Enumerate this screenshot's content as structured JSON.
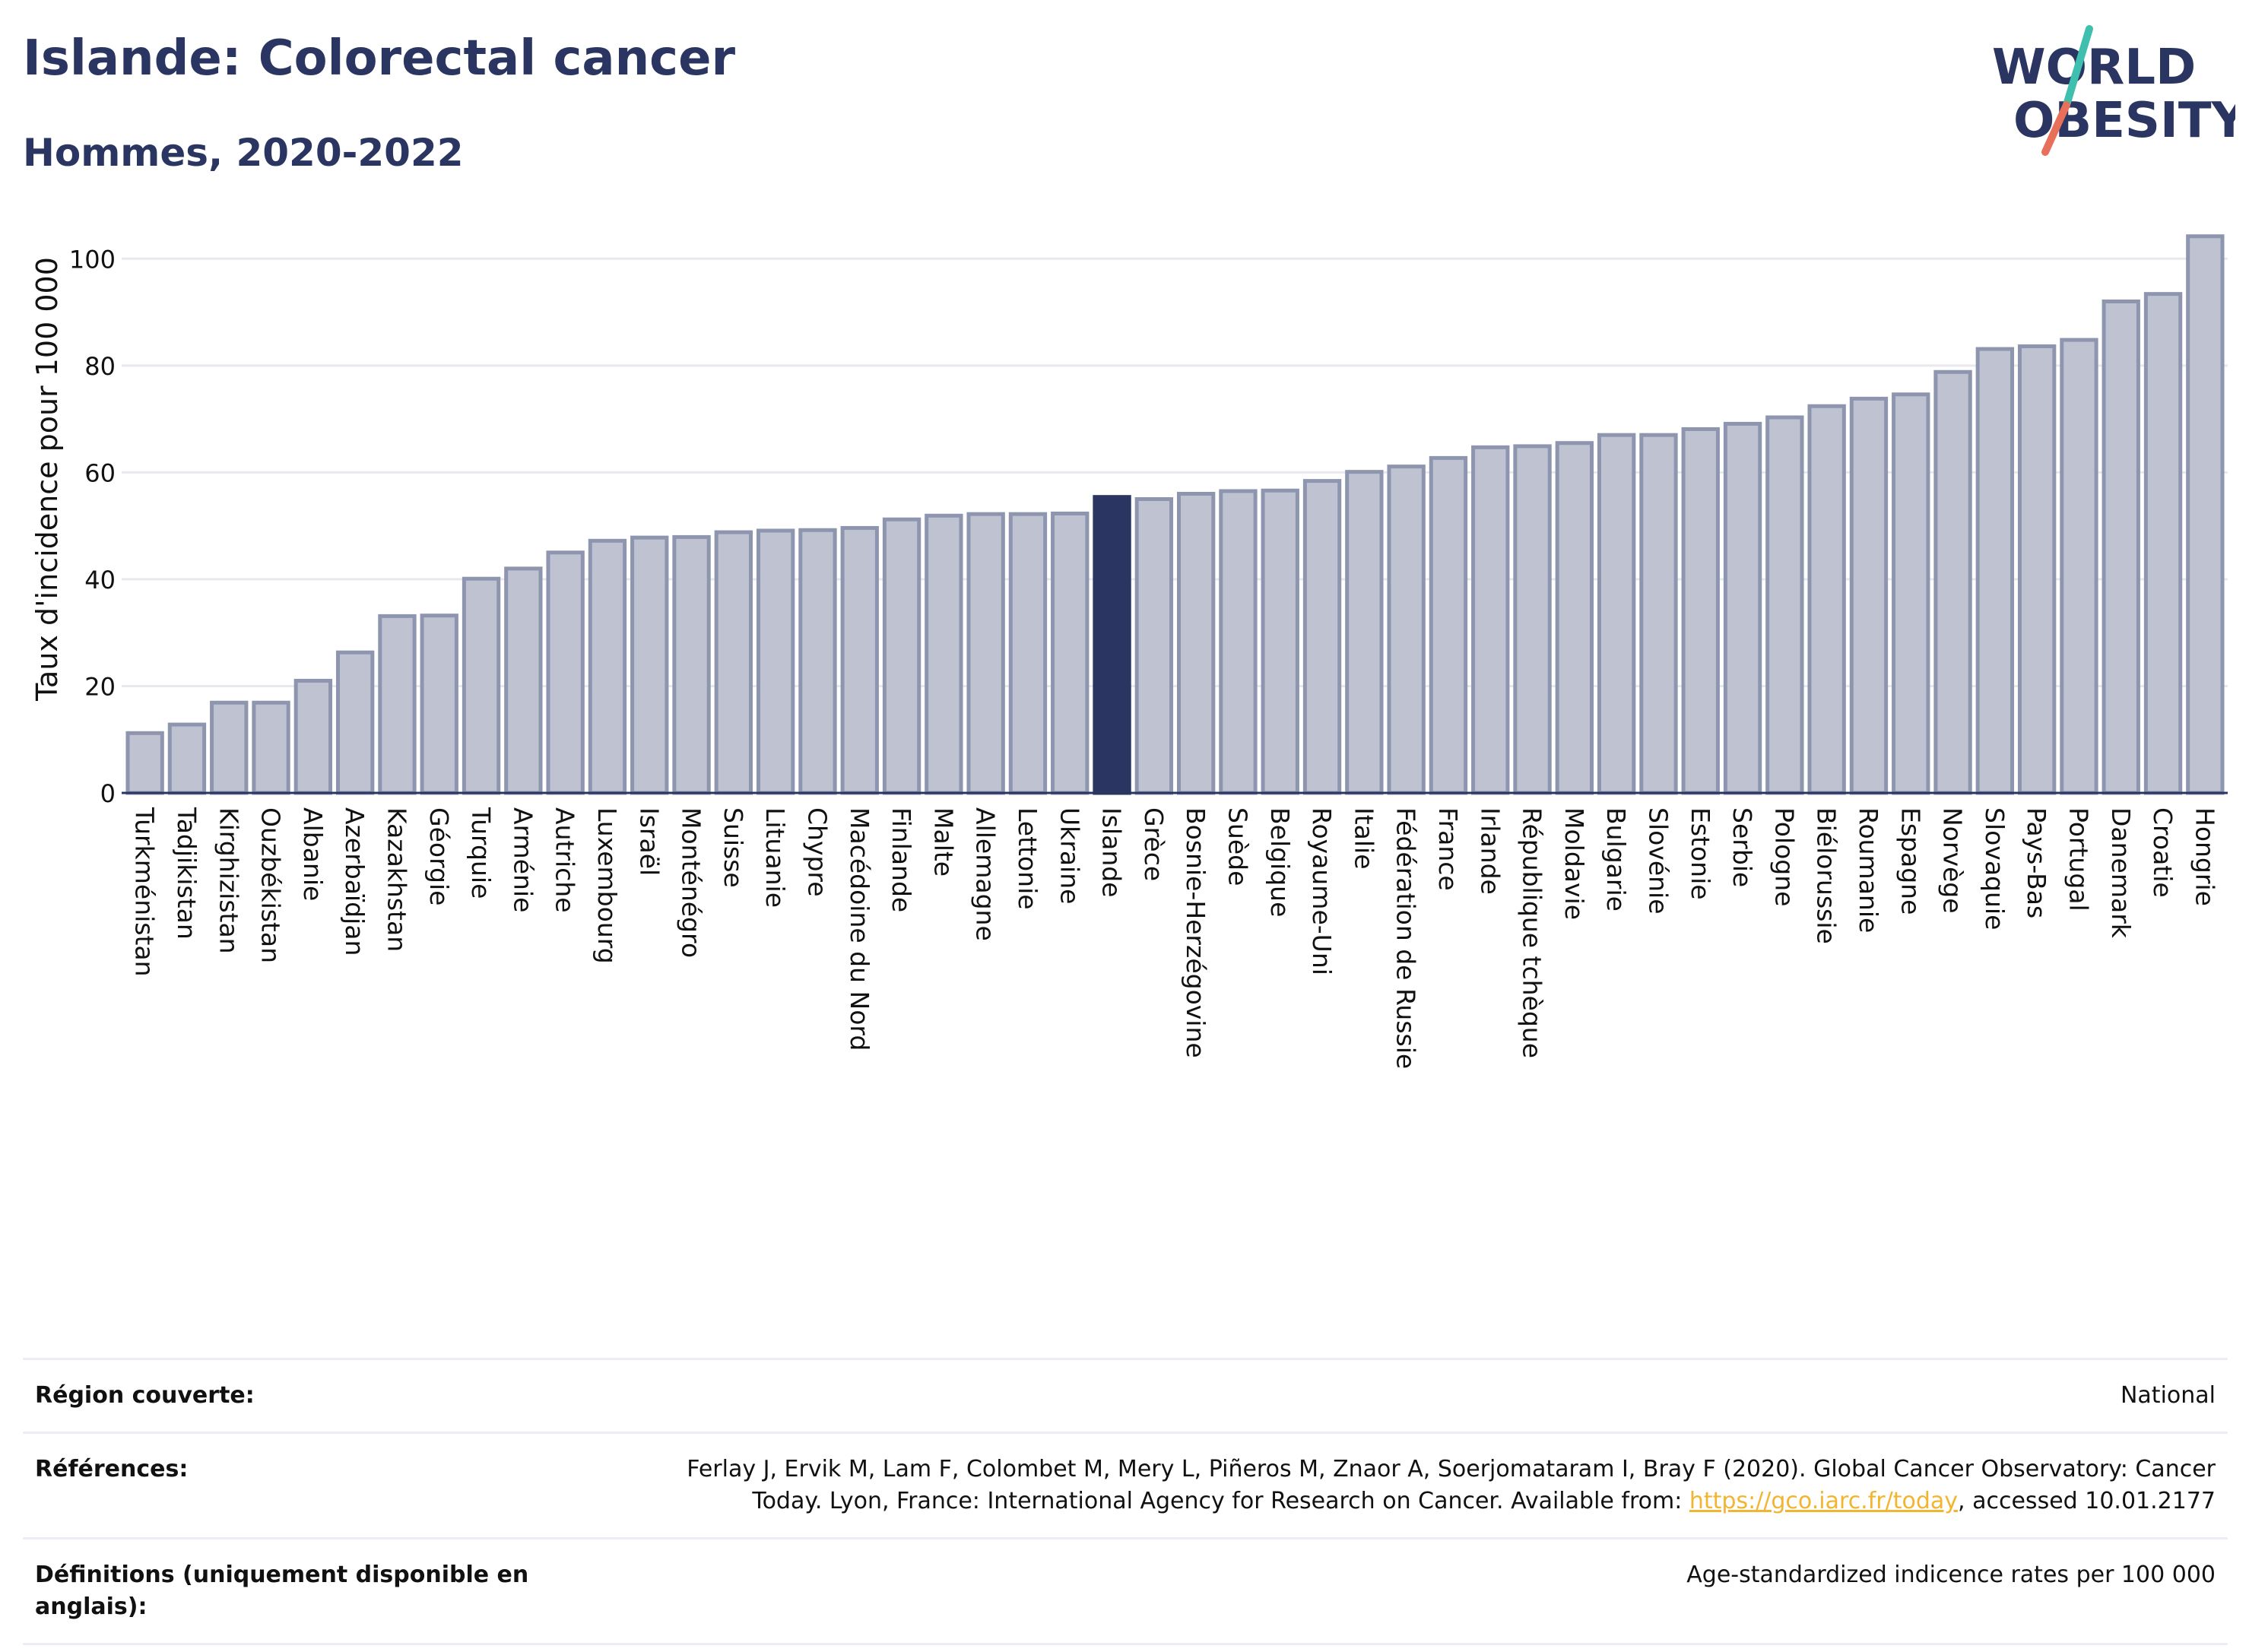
{
  "header": {
    "title": "Islande: Colorectal cancer",
    "subtitle": "Hommes, 2020-2022"
  },
  "logo": {
    "line1": "WORLD",
    "line2": "OBESITY",
    "icon": "world-obesity-slash-logo"
  },
  "colors": {
    "bar": "#bfc3d1",
    "bar_edge": "#8e95ae",
    "highlight": "#2a3561",
    "grid": "#e8e9ee",
    "axis": "#2a3561"
  },
  "chart_data": {
    "type": "bar",
    "ylabel": "Taux d'incidence pour 100 000",
    "ylim": [
      0,
      110
    ],
    "yticks": [
      0,
      20,
      40,
      60,
      80,
      100
    ],
    "grid": true,
    "highlight": "Islande",
    "categories": [
      "Turkménistan",
      "Tadjikistan",
      "Kirghizistan",
      "Ouzbékistan",
      "Albanie",
      "Azerbaïdjan",
      "Kazakhstan",
      "Géorgie",
      "Turquie",
      "Arménie",
      "Autriche",
      "Luxembourg",
      "Israël",
      "Monténégro",
      "Suisse",
      "Lituanie",
      "Chypre",
      "Macédoine du Nord",
      "Finlande",
      "Malte",
      "Allemagne",
      "Lettonie",
      "Ukraine",
      "Islande",
      "Grèce",
      "Bosnie-Herzégovine",
      "Suède",
      "Belgique",
      "Royaume-Uni",
      "Italie",
      "Fédération de Russie",
      "France",
      "Irlande",
      "République tchèque",
      "Moldavie",
      "Bulgarie",
      "Slovénie",
      "Estonie",
      "Serbie",
      "Pologne",
      "Biélorussie",
      "Roumanie",
      "Espagne",
      "Norvège",
      "Slovaquie",
      "Pays-Bas",
      "Portugal",
      "Danemark",
      "Croatie",
      "Hongrie"
    ],
    "values": [
      11.2,
      12.8,
      16.9,
      16.9,
      21.0,
      26.3,
      33.1,
      33.2,
      40.1,
      42.0,
      45.0,
      47.2,
      47.8,
      47.9,
      48.8,
      49.1,
      49.2,
      49.6,
      51.2,
      51.9,
      52.2,
      52.2,
      52.3,
      55.4,
      55.0,
      56.0,
      56.5,
      56.6,
      58.4,
      60.1,
      61.1,
      62.7,
      64.7,
      64.9,
      65.5,
      67.0,
      67.0,
      68.1,
      69.1,
      70.3,
      72.4,
      73.8,
      74.6,
      78.8,
      83.1,
      83.6,
      84.8,
      92.0,
      93.4,
      104.2
    ]
  },
  "meta": {
    "region_label": "Région couverte:",
    "region_value": "National",
    "refs_label": "Références:",
    "refs_line1": "Ferlay J, Ervik M, Lam F, Colombet M, Mery L, Piñeros M, Znaor A, Soerjomataram I, Bray F (2020). Global Cancer Observatory: Cancer",
    "refs_line2_pre": "Today. Lyon, France: International Agency for Research on Cancer. Available from: ",
    "refs_link": "https://gco.iarc.fr/today",
    "refs_line2_post": ", accessed 10.01.2177",
    "defs_label": "Définitions (uniquement disponible en anglais):",
    "defs_value": "Age-standardized indicence rates per 100 000"
  }
}
